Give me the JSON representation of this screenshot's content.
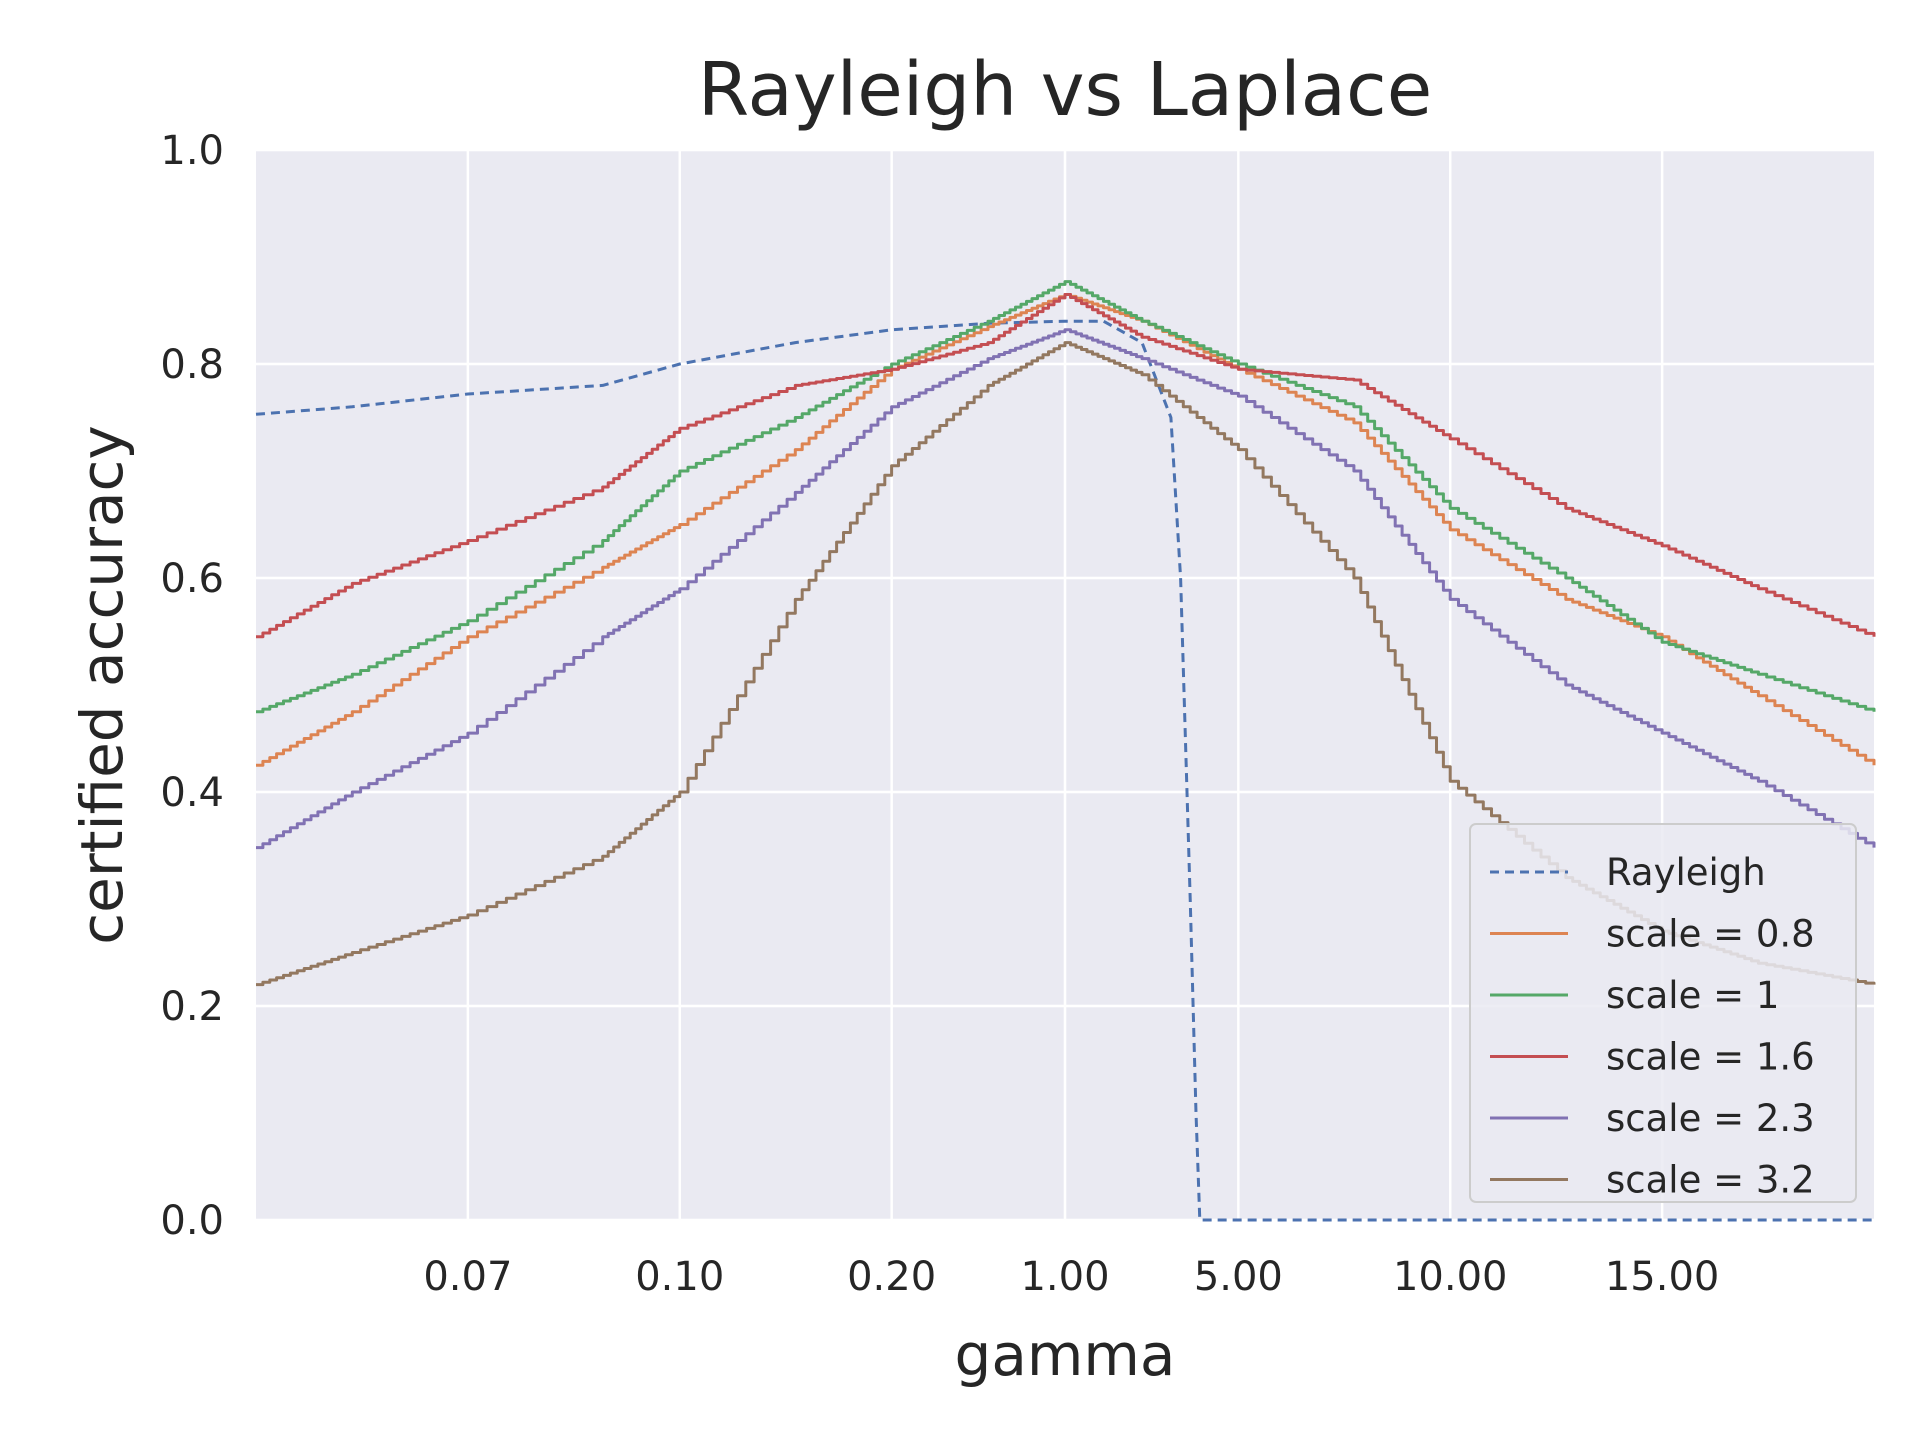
{
  "chart_data": {
    "type": "line",
    "title": "Rayleigh vs Laplace",
    "xlabel": "gamma",
    "ylabel": "certified accuracy",
    "x_scale": "categorical-log-like",
    "ylim": [
      0,
      1
    ],
    "grid": true,
    "legend_position": "bottom-right",
    "x_ticks": [
      "0.07",
      "0.10",
      "0.20",
      "1.00",
      "5.00",
      "10.00",
      "15.00"
    ],
    "y_ticks": [
      "0.0",
      "0.2",
      "0.4",
      "0.6",
      "0.8",
      "1.0"
    ],
    "x_tick_positions": [
      1.1,
      2.2,
      3.3,
      4.2,
      5.1,
      6.2,
      7.3
    ],
    "x_domain": [
      0,
      8.4
    ],
    "colors": {
      "plot_background": "#eaeaf2",
      "grid": "#ffffff",
      "text": "#262626"
    },
    "series": [
      {
        "name": "Rayleigh",
        "color": "#4c72b0",
        "dashed": true,
        "points": [
          [
            0,
            0.753
          ],
          [
            0.5,
            0.76
          ],
          [
            1.1,
            0.772
          ],
          [
            1.8,
            0.78
          ],
          [
            2.2,
            0.8
          ],
          [
            2.8,
            0.82
          ],
          [
            3.3,
            0.832
          ],
          [
            3.8,
            0.838
          ],
          [
            4.2,
            0.84
          ],
          [
            4.4,
            0.84
          ],
          [
            4.6,
            0.82
          ],
          [
            4.75,
            0.75
          ],
          [
            4.8,
            0.6
          ],
          [
            4.85,
            0.3
          ],
          [
            4.88,
            0.1
          ],
          [
            4.9,
            0.0
          ],
          [
            8.4,
            0.0
          ]
        ]
      },
      {
        "name": "scale = 0.8",
        "color": "#dd8452",
        "dashed": false,
        "points": [
          [
            0,
            0.425
          ],
          [
            0.5,
            0.475
          ],
          [
            1.1,
            0.545
          ],
          [
            1.8,
            0.61
          ],
          [
            2.2,
            0.65
          ],
          [
            2.8,
            0.72
          ],
          [
            3.3,
            0.795
          ],
          [
            3.8,
            0.835
          ],
          [
            4.2,
            0.865
          ],
          [
            4.6,
            0.84
          ],
          [
            5.1,
            0.795
          ],
          [
            5.7,
            0.745
          ],
          [
            6.2,
            0.645
          ],
          [
            6.8,
            0.58
          ],
          [
            7.3,
            0.545
          ],
          [
            7.8,
            0.49
          ],
          [
            8.4,
            0.425
          ]
        ]
      },
      {
        "name": "scale = 1",
        "color": "#55a868",
        "dashed": false,
        "points": [
          [
            0,
            0.475
          ],
          [
            0.5,
            0.51
          ],
          [
            1.1,
            0.56
          ],
          [
            1.8,
            0.635
          ],
          [
            2.2,
            0.7
          ],
          [
            2.8,
            0.75
          ],
          [
            3.3,
            0.8
          ],
          [
            3.8,
            0.84
          ],
          [
            4.2,
            0.877
          ],
          [
            4.6,
            0.84
          ],
          [
            5.1,
            0.8
          ],
          [
            5.7,
            0.76
          ],
          [
            6.2,
            0.665
          ],
          [
            6.8,
            0.6
          ],
          [
            7.3,
            0.54
          ],
          [
            7.8,
            0.51
          ],
          [
            8.4,
            0.475
          ]
        ]
      },
      {
        "name": "scale = 1.6",
        "color": "#c44e52",
        "dashed": false,
        "points": [
          [
            0,
            0.545
          ],
          [
            0.5,
            0.595
          ],
          [
            1.1,
            0.635
          ],
          [
            1.8,
            0.685
          ],
          [
            2.2,
            0.74
          ],
          [
            2.8,
            0.78
          ],
          [
            3.3,
            0.795
          ],
          [
            3.8,
            0.82
          ],
          [
            4.2,
            0.865
          ],
          [
            4.6,
            0.825
          ],
          [
            5.1,
            0.795
          ],
          [
            5.7,
            0.785
          ],
          [
            6.2,
            0.73
          ],
          [
            6.8,
            0.665
          ],
          [
            7.3,
            0.63
          ],
          [
            7.8,
            0.59
          ],
          [
            8.4,
            0.545
          ]
        ]
      },
      {
        "name": "scale = 2.3",
        "color": "#8172b3",
        "dashed": false,
        "points": [
          [
            0,
            0.348
          ],
          [
            0.5,
            0.4
          ],
          [
            1.1,
            0.455
          ],
          [
            1.8,
            0.545
          ],
          [
            2.2,
            0.59
          ],
          [
            2.8,
            0.68
          ],
          [
            3.3,
            0.76
          ],
          [
            3.8,
            0.805
          ],
          [
            4.2,
            0.832
          ],
          [
            4.6,
            0.805
          ],
          [
            5.1,
            0.77
          ],
          [
            5.7,
            0.7
          ],
          [
            6.2,
            0.58
          ],
          [
            6.8,
            0.5
          ],
          [
            7.3,
            0.455
          ],
          [
            7.8,
            0.41
          ],
          [
            8.4,
            0.348
          ]
        ]
      },
      {
        "name": "scale = 3.2",
        "color": "#937860",
        "dashed": false,
        "points": [
          [
            0,
            0.22
          ],
          [
            0.5,
            0.25
          ],
          [
            1.1,
            0.285
          ],
          [
            1.8,
            0.34
          ],
          [
            2.2,
            0.4
          ],
          [
            2.8,
            0.58
          ],
          [
            3.3,
            0.705
          ],
          [
            3.8,
            0.78
          ],
          [
            4.2,
            0.82
          ],
          [
            4.6,
            0.79
          ],
          [
            5.1,
            0.72
          ],
          [
            5.7,
            0.6
          ],
          [
            6.2,
            0.41
          ],
          [
            6.8,
            0.32
          ],
          [
            7.3,
            0.27
          ],
          [
            7.8,
            0.24
          ],
          [
            8.4,
            0.22
          ]
        ]
      }
    ]
  }
}
